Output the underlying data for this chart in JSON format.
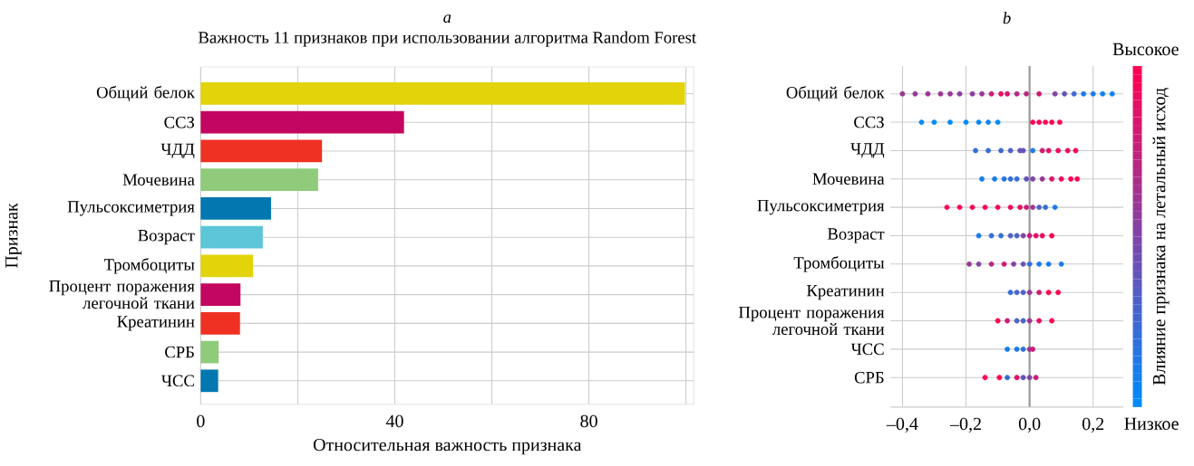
{
  "chart_data": [
    {
      "type": "bar",
      "orientation": "horizontal",
      "annotations": [
        "a"
      ],
      "title": "Важность 11 признаков при использовании алгоритма Random Forest",
      "categories": [
        "Общий белок",
        "ССЗ",
        "ЧДД",
        "Мочевина",
        "Пульсоксиметрия",
        "Возраст",
        "Тромбоциты",
        "Процент поражения легочной ткани",
        "Креатинин",
        "СРБ",
        "ЧСС"
      ],
      "values": [
        99.8,
        41.9,
        25.0,
        24.2,
        14.5,
        12.8,
        10.8,
        8.2,
        8.1,
        3.7,
        3.6
      ],
      "colors": [
        "#e2d30b",
        "#c3065f",
        "#ef3124",
        "#8fcb7a",
        "#0277b0",
        "#5cc6d8",
        "#e2d30b",
        "#c3065f",
        "#ef3124",
        "#8fcb7a",
        "#0277b0"
      ],
      "xlim": [
        0,
        101.6
      ],
      "xticks": [
        0,
        {
          "value": 20,
          "label": null
        },
        40,
        {
          "value": 60,
          "label": null
        },
        80,
        {
          "value": 100,
          "label": null
        }
      ],
      "xlabel": "Относительная важность признака",
      "ylabel": "Признак",
      "grid": true
    },
    {
      "type": "scatter",
      "orientation": "horizontal",
      "annotations": [
        "b",
        "Высокое",
        "Низкое"
      ],
      "categories": [
        "Общий белок",
        "ССЗ",
        "ЧДД",
        "Мочевина",
        "Пульсоксиметрия",
        "Возраст",
        "Тромбоциты",
        "Креатинин",
        "Процент поражения легочной ткани",
        "ЧСС",
        "СРБ"
      ],
      "series": [
        {
          "x": [
            "Общий белок",
            "Общий белок",
            "Общий белок",
            "Общий белок",
            "Общий белок",
            "Общий белок",
            "Общий белок",
            "Общий белок",
            "Общий белок",
            "Общий белок",
            "Общий белок",
            "Общий белок",
            "Общий белок",
            "Общий белок",
            "Общий белок",
            "Общий белок",
            "Общий белок",
            "Общий белок",
            "Общий белок",
            "Общий белок",
            "Общий белок"
          ],
          "values": [
            -0.4,
            -0.36,
            -0.32,
            -0.28,
            -0.25,
            -0.22,
            -0.18,
            -0.15,
            -0.12,
            -0.09,
            -0.07,
            -0.04,
            -0.01,
            0.03,
            0.08,
            0.11,
            0.14,
            0.17,
            0.2,
            0.23,
            0.26
          ],
          "colors": [
            "#993795",
            "#993795",
            "#993795",
            "#993795",
            "#993795",
            "#8c3e9e",
            "#8c3e9e",
            "#993795",
            "#cc1c74",
            "#e60e63",
            "#d9156b",
            "#b32984",
            "#b32984",
            "#cc1c74",
            "#8045a6",
            "#6653b7",
            "#4068d0",
            "#1a7ce9",
            "#1a7ce9",
            "#0d83f2",
            "#0d83f2"
          ]
        },
        {
          "x": [
            "ССЗ",
            "ССЗ",
            "ССЗ",
            "ССЗ",
            "ССЗ",
            "ССЗ",
            "ССЗ",
            "ССЗ",
            "ССЗ",
            "ССЗ",
            "ССЗ",
            "ССЗ"
          ],
          "values": [
            -0.34,
            -0.3,
            -0.25,
            -0.2,
            -0.16,
            -0.13,
            -0.1,
            0.01,
            0.03,
            0.05,
            0.07,
            0.095
          ],
          "colors": [
            "#008afa",
            "#008afa",
            "#008afa",
            "#008afa",
            "#008afa",
            "#0d83f2",
            "#008afa",
            "#ff0052",
            "#ff0052",
            "#ff0052",
            "#ff0052",
            "#ff0052"
          ]
        },
        {
          "x": [
            "ЧДД",
            "ЧДД",
            "ЧДД",
            "ЧДД",
            "ЧДД",
            "ЧДД",
            "ЧДД",
            "ЧДД",
            "ЧДД",
            "ЧДД",
            "ЧДД",
            "ЧДД"
          ],
          "values": [
            -0.17,
            -0.13,
            -0.09,
            -0.06,
            -0.03,
            -0.02,
            0.01,
            0.04,
            0.06,
            0.09,
            0.12,
            0.145
          ],
          "colors": [
            "#336ed8",
            "#336ed8",
            "#4068d0",
            "#4d61c8",
            "#6653b7",
            "#6653b7",
            "#1a7ce9",
            "#cc1c74",
            "#e60e63",
            "#f2075a",
            "#e60e63",
            "#ff0052"
          ]
        },
        {
          "x": [
            "Мочевина",
            "Мочевина",
            "Мочевина",
            "Мочевина",
            "Мочевина",
            "Мочевина",
            "Мочевина",
            "Мочевина",
            "Мочевина",
            "Мочевина",
            "Мочевина",
            "Мочевина"
          ],
          "values": [
            -0.15,
            -0.11,
            -0.08,
            -0.06,
            -0.04,
            -0.01,
            0.01,
            0.04,
            0.07,
            0.1,
            0.13,
            0.15
          ],
          "colors": [
            "#1a7ce9",
            "#1a7ce9",
            "#2675e1",
            "#336ed8",
            "#336ed8",
            "#6653b7",
            "#8045a6",
            "#993795",
            "#d9156b",
            "#f2075a",
            "#ff0052",
            "#ff0052"
          ]
        },
        {
          "x": [
            "Пульсоксиметрия",
            "Пульсоксиметрия",
            "Пульсоксиметрия",
            "Пульсоксиметрия",
            "Пульсоксиметрия",
            "Пульсоксиметрия",
            "Пульсоксиметрия",
            "Пульсоксиметрия",
            "Пульсоксиметрия",
            "Пульсоксиметрия",
            "Пульсоксиметрия",
            "Пульсоксиметрия"
          ],
          "values": [
            -0.26,
            -0.22,
            -0.18,
            -0.14,
            -0.1,
            -0.06,
            -0.03,
            -0.01,
            0.01,
            0.03,
            0.05,
            0.08
          ],
          "colors": [
            "#ff0052",
            "#ff0052",
            "#ff0052",
            "#ff0052",
            "#f2075a",
            "#f2075a",
            "#e60e63",
            "#cc1c74",
            "#993795",
            "#4d61c8",
            "#336ed8",
            "#1a7ce9"
          ]
        },
        {
          "x": [
            "Возраст",
            "Возраст",
            "Возраст",
            "Возраст",
            "Возраст",
            "Возраст",
            "Возраст",
            "Возраст",
            "Возраст",
            "Возраст"
          ],
          "values": [
            -0.16,
            -0.12,
            -0.09,
            -0.06,
            -0.04,
            -0.02,
            0.0,
            0.02,
            0.04,
            0.07
          ],
          "colors": [
            "#1a7ce9",
            "#336ed8",
            "#336ed8",
            "#4d61c8",
            "#4d61c8",
            "#8045a6",
            "#cc1c74",
            "#e60e63",
            "#e60e63",
            "#ff0052"
          ]
        },
        {
          "x": [
            "Тромбоциты",
            "Тромбоциты",
            "Тромбоциты",
            "Тромбоциты",
            "Тромбоциты",
            "Тромбоциты",
            "Тромбоциты",
            "Тромбоциты",
            "Тромбоциты",
            "Тромбоциты"
          ],
          "values": [
            -0.19,
            -0.16,
            -0.12,
            -0.08,
            -0.05,
            -0.02,
            0.0,
            0.03,
            0.06,
            0.1
          ],
          "colors": [
            "#993795",
            "#8045a6",
            "#b32984",
            "#cc1c74",
            "#8045a6",
            "#6653b7",
            "#336ed8",
            "#1a7ce9",
            "#1a7ce9",
            "#1a7ce9"
          ]
        },
        {
          "x": [
            "Креатинин",
            "Креатинин",
            "Креатинин",
            "Креатинин",
            "Креатинин",
            "Креатинин",
            "Креатинин"
          ],
          "values": [
            -0.06,
            -0.04,
            -0.02,
            0.0,
            0.03,
            0.06,
            0.09
          ],
          "colors": [
            "#336ed8",
            "#4d61c8",
            "#4d61c8",
            "#993795",
            "#cc1c74",
            "#ff0052",
            "#ff0052"
          ]
        },
        {
          "x": [
            "Процент поражения легочной ткани",
            "Процент поражения легочной ткани",
            "Процент поражения легочной ткани",
            "Процент поражения легочной ткани",
            "Процент поражения легочной ткани",
            "Процент поражения легочной ткани",
            "Процент поражения легочной ткани"
          ],
          "values": [
            -0.1,
            -0.07,
            -0.04,
            -0.02,
            0.0,
            0.03,
            0.07
          ],
          "colors": [
            "#ff0052",
            "#cc1c74",
            "#4d61c8",
            "#4d61c8",
            "#993795",
            "#e60e63",
            "#ff0052"
          ]
        },
        {
          "x": [
            "ЧСС",
            "ЧСС",
            "ЧСС",
            "ЧСС",
            "ЧСС"
          ],
          "values": [
            -0.07,
            -0.04,
            -0.02,
            0.0,
            0.01
          ],
          "colors": [
            "#1a7ce9",
            "#1a7ce9",
            "#336ed8",
            "#993795",
            "#cc1c74"
          ]
        },
        {
          "x": [
            "СРБ",
            "СРБ",
            "СРБ",
            "СРБ",
            "СРБ",
            "СРБ",
            "СРБ"
          ],
          "values": [
            -0.14,
            -0.095,
            -0.07,
            -0.04,
            -0.02,
            0.0,
            0.02
          ],
          "colors": [
            "#ff0052",
            "#ff0052",
            "#336ed8",
            "#e60e63",
            "#6653b7",
            "#8045a6",
            "#cc1c74"
          ]
        }
      ],
      "xlim": [
        -0.438,
        0.295
      ],
      "xticks": [
        {
          "value": -0.4,
          "label": "–0,4"
        },
        {
          "value": -0.2,
          "label": "–0,2"
        },
        {
          "value": 0.0,
          "label": "0,0"
        },
        {
          "value": 0.2,
          "label": "0,2"
        }
      ],
      "grid": true,
      "ref_lines": [
        {
          "axis": "x",
          "value": 0,
          "color": "#999999"
        }
      ],
      "clabel": "Влияние признака на летальный исход"
    }
  ]
}
